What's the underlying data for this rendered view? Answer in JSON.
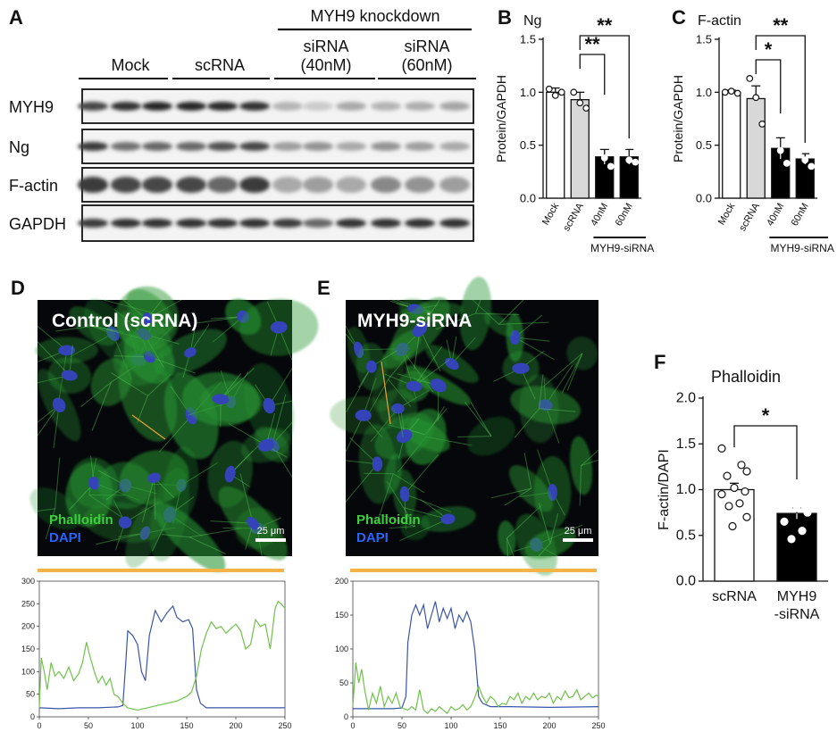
{
  "panels": {
    "A": "A",
    "B": "B",
    "C": "C",
    "D": "D",
    "E": "E",
    "F": "F"
  },
  "western": {
    "header": "MYH9 knockdown",
    "groups": [
      "Mock",
      "scRNA",
      "siRNA\n(40nM)",
      "siRNA\n(60nM)"
    ],
    "rows": [
      {
        "label": "MYH9",
        "intensity": [
          0.75,
          0.85,
          0.9,
          0.9,
          0.88,
          0.85,
          0.25,
          0.15,
          0.3,
          0.25,
          0.28,
          0.32
        ]
      },
      {
        "label": "Ng",
        "intensity": [
          0.8,
          0.55,
          0.6,
          0.6,
          0.7,
          0.75,
          0.35,
          0.4,
          0.3,
          0.4,
          0.35,
          0.3
        ]
      },
      {
        "label": "F-actin",
        "intensity": [
          0.8,
          0.75,
          0.75,
          0.75,
          0.6,
          0.8,
          0.3,
          0.35,
          0.3,
          0.45,
          0.4,
          0.35
        ]
      },
      {
        "label": "GAPDH",
        "intensity": [
          0.8,
          0.85,
          0.85,
          0.85,
          0.85,
          0.85,
          0.8,
          0.6,
          0.85,
          0.85,
          0.85,
          0.85
        ]
      }
    ]
  },
  "chart_data": [
    {
      "id": "B",
      "type": "bar",
      "title": "Ng",
      "ylabel": "Protein/GAPDH",
      "ylim": [
        0,
        1.5
      ],
      "yticks": [
        "0.0",
        "0.5",
        "1.0",
        "1.5"
      ],
      "categories": [
        "Mock",
        "scRNA",
        "40nM",
        "60nM"
      ],
      "values": [
        1.0,
        0.93,
        0.39,
        0.39
      ],
      "errors": [
        0.04,
        0.07,
        0.07,
        0.07
      ],
      "colors": [
        "#ffffff",
        "#d8d8d8",
        "#000000",
        "#000000"
      ],
      "points": [
        [
          1.03,
          0.97,
          1.0
        ],
        [
          1.0,
          0.9,
          0.85
        ],
        [
          0.53,
          0.38,
          0.3
        ],
        [
          0.48,
          0.36,
          0.34
        ]
      ],
      "group_label": "MYH9-siRNA",
      "significance": [
        {
          "from": 1,
          "to": 2,
          "label": "**"
        },
        {
          "from": 1,
          "to": 3,
          "label": "**"
        }
      ]
    },
    {
      "id": "C",
      "type": "bar",
      "title": "F-actin",
      "ylabel": "Protein/GAPDH",
      "ylim": [
        0,
        1.5
      ],
      "yticks": [
        "0.0",
        "0.5",
        "1.0",
        "1.5"
      ],
      "categories": [
        "Mock",
        "scRNA",
        "40nM",
        "60nM"
      ],
      "values": [
        1.0,
        0.94,
        0.47,
        0.37
      ],
      "errors": [
        0.02,
        0.12,
        0.1,
        0.05
      ],
      "colors": [
        "#ffffff",
        "#d8d8d8",
        "#000000",
        "#000000"
      ],
      "points": [
        [
          1.0,
          1.01,
          0.99
        ],
        [
          1.13,
          0.95,
          0.7
        ],
        [
          0.6,
          0.45,
          0.33
        ],
        [
          0.43,
          0.36,
          0.3
        ]
      ],
      "group_label": "MYH9-siRNA",
      "significance": [
        {
          "from": 1,
          "to": 2,
          "label": "*"
        },
        {
          "from": 1,
          "to": 3,
          "label": "**"
        }
      ]
    },
    {
      "id": "F",
      "type": "bar",
      "title": "Phalloidin",
      "ylabel": "F-actin/DAPI",
      "ylim": [
        0,
        2.0
      ],
      "yticks": [
        "0.0",
        "0.5",
        "1.0",
        "1.5",
        "2.0"
      ],
      "categories": [
        "scRNA",
        "MYH9\n-siRNA"
      ],
      "values": [
        1.0,
        0.74
      ],
      "errors": [
        0.07,
        0.06
      ],
      "colors": [
        "#ffffff",
        "#000000"
      ],
      "points": [
        [
          1.45,
          1.27,
          1.2,
          1.15,
          1.02,
          0.98,
          0.95,
          0.85,
          0.82,
          0.7,
          0.6
        ],
        [
          0.98,
          0.97,
          0.88,
          0.85,
          0.8,
          0.75,
          0.65,
          0.55,
          0.46
        ]
      ],
      "significance": [
        {
          "from": 0,
          "to": 1,
          "label": "*"
        }
      ]
    },
    {
      "id": "D-profile",
      "type": "line",
      "xlim": [
        0,
        250
      ],
      "ylim": [
        0,
        300
      ],
      "xticks": [
        "0",
        "50",
        "100",
        "150",
        "200",
        "250"
      ],
      "yticks": [
        "0",
        "50",
        "100",
        "150",
        "200",
        "250",
        "300"
      ],
      "series": [
        {
          "color": "#3a55a8",
          "points": [
            [
              0,
              20
            ],
            [
              20,
              18
            ],
            [
              40,
              20
            ],
            [
              60,
              20
            ],
            [
              80,
              22
            ],
            [
              85,
              25
            ],
            [
              88,
              120
            ],
            [
              90,
              190
            ],
            [
              95,
              180
            ],
            [
              100,
              160
            ],
            [
              104,
              100
            ],
            [
              108,
              80
            ],
            [
              112,
              180
            ],
            [
              118,
              235
            ],
            [
              124,
              210
            ],
            [
              130,
              230
            ],
            [
              136,
              245
            ],
            [
              140,
              220
            ],
            [
              146,
              210
            ],
            [
              152,
              215
            ],
            [
              156,
              195
            ],
            [
              160,
              60
            ],
            [
              164,
              30
            ],
            [
              170,
              20
            ],
            [
              200,
              20
            ],
            [
              230,
              20
            ],
            [
              250,
              20
            ]
          ]
        },
        {
          "color": "#6fc24a",
          "points": [
            [
              0,
              20
            ],
            [
              2,
              130
            ],
            [
              5,
              100
            ],
            [
              8,
              60
            ],
            [
              12,
              120
            ],
            [
              16,
              90
            ],
            [
              20,
              100
            ],
            [
              25,
              85
            ],
            [
              30,
              110
            ],
            [
              35,
              80
            ],
            [
              40,
              95
            ],
            [
              44,
              120
            ],
            [
              48,
              165
            ],
            [
              52,
              130
            ],
            [
              56,
              100
            ],
            [
              60,
              75
            ],
            [
              64,
              90
            ],
            [
              68,
              70
            ],
            [
              72,
              85
            ],
            [
              76,
              50
            ],
            [
              80,
              45
            ],
            [
              85,
              30
            ],
            [
              90,
              20
            ],
            [
              100,
              15
            ],
            [
              110,
              20
            ],
            [
              120,
              25
            ],
            [
              130,
              30
            ],
            [
              140,
              35
            ],
            [
              150,
              45
            ],
            [
              155,
              55
            ],
            [
              160,
              90
            ],
            [
              165,
              150
            ],
            [
              170,
              185
            ],
            [
              175,
              210
            ],
            [
              180,
              195
            ],
            [
              185,
              200
            ],
            [
              190,
              185
            ],
            [
              195,
              195
            ],
            [
              200,
              205
            ],
            [
              205,
              190
            ],
            [
              210,
              150
            ],
            [
              215,
              160
            ],
            [
              220,
              215
            ],
            [
              225,
              200
            ],
            [
              230,
              205
            ],
            [
              235,
              150
            ],
            [
              240,
              240
            ],
            [
              243,
              255
            ],
            [
              246,
              250
            ],
            [
              250,
              240
            ]
          ]
        }
      ]
    },
    {
      "id": "E-profile",
      "type": "line",
      "xlim": [
        0,
        250
      ],
      "ylim": [
        0,
        200
      ],
      "xticks": [
        "0",
        "50",
        "100",
        "150",
        "200",
        "250"
      ],
      "yticks": [
        "0",
        "50",
        "100",
        "150",
        "200"
      ],
      "series": [
        {
          "color": "#3a55a8",
          "points": [
            [
              0,
              12
            ],
            [
              20,
              12
            ],
            [
              40,
              12
            ],
            [
              50,
              13
            ],
            [
              54,
              30
            ],
            [
              56,
              110
            ],
            [
              60,
              150
            ],
            [
              64,
              165
            ],
            [
              68,
              150
            ],
            [
              72,
              165
            ],
            [
              76,
              130
            ],
            [
              80,
              150
            ],
            [
              84,
              170
            ],
            [
              88,
              140
            ],
            [
              92,
              160
            ],
            [
              96,
              145
            ],
            [
              100,
              160
            ],
            [
              104,
              130
            ],
            [
              108,
              150
            ],
            [
              112,
              140
            ],
            [
              116,
              155
            ],
            [
              120,
              140
            ],
            [
              124,
              100
            ],
            [
              128,
              30
            ],
            [
              132,
              20
            ],
            [
              140,
              15
            ],
            [
              160,
              15
            ],
            [
              200,
              14
            ],
            [
              250,
              15
            ]
          ]
        },
        {
          "color": "#6fc24a",
          "points": [
            [
              0,
              15
            ],
            [
              3,
              80
            ],
            [
              6,
              50
            ],
            [
              9,
              70
            ],
            [
              12,
              40
            ],
            [
              16,
              10
            ],
            [
              20,
              35
            ],
            [
              24,
              20
            ],
            [
              28,
              45
            ],
            [
              32,
              15
            ],
            [
              36,
              30
            ],
            [
              40,
              20
            ],
            [
              44,
              35
            ],
            [
              48,
              15
            ],
            [
              52,
              12
            ],
            [
              56,
              10
            ],
            [
              60,
              15
            ],
            [
              64,
              10
            ],
            [
              68,
              40
            ],
            [
              72,
              10
            ],
            [
              76,
              5
            ],
            [
              80,
              12
            ],
            [
              84,
              8
            ],
            [
              88,
              15
            ],
            [
              92,
              10
            ],
            [
              96,
              5
            ],
            [
              100,
              15
            ],
            [
              104,
              10
            ],
            [
              108,
              12
            ],
            [
              112,
              18
            ],
            [
              116,
              10
            ],
            [
              120,
              15
            ],
            [
              124,
              28
            ],
            [
              128,
              45
            ],
            [
              132,
              30
            ],
            [
              136,
              20
            ],
            [
              140,
              30
            ],
            [
              144,
              25
            ],
            [
              148,
              15
            ],
            [
              152,
              20
            ],
            [
              156,
              18
            ],
            [
              160,
              30
            ],
            [
              164,
              25
            ],
            [
              168,
              35
            ],
            [
              172,
              20
            ],
            [
              176,
              30
            ],
            [
              180,
              25
            ],
            [
              184,
              35
            ],
            [
              188,
              25
            ],
            [
              192,
              30
            ],
            [
              196,
              28
            ],
            [
              200,
              35
            ],
            [
              204,
              20
            ],
            [
              208,
              30
            ],
            [
              212,
              25
            ],
            [
              216,
              38
            ],
            [
              220,
              28
            ],
            [
              224,
              30
            ],
            [
              228,
              40
            ],
            [
              232,
              25
            ],
            [
              236,
              30
            ],
            [
              240,
              35
            ],
            [
              244,
              28
            ],
            [
              248,
              32
            ],
            [
              250,
              30
            ]
          ]
        }
      ]
    }
  ],
  "images": {
    "D": {
      "title": "Control (scRNA)",
      "legend_green": "Phalloidin",
      "legend_blue": "DAPI",
      "scale": "25 μm"
    },
    "E": {
      "title": "MYH9-siRNA",
      "legend_green": "Phalloidin",
      "legend_blue": "DAPI",
      "scale": "25 μm"
    }
  }
}
